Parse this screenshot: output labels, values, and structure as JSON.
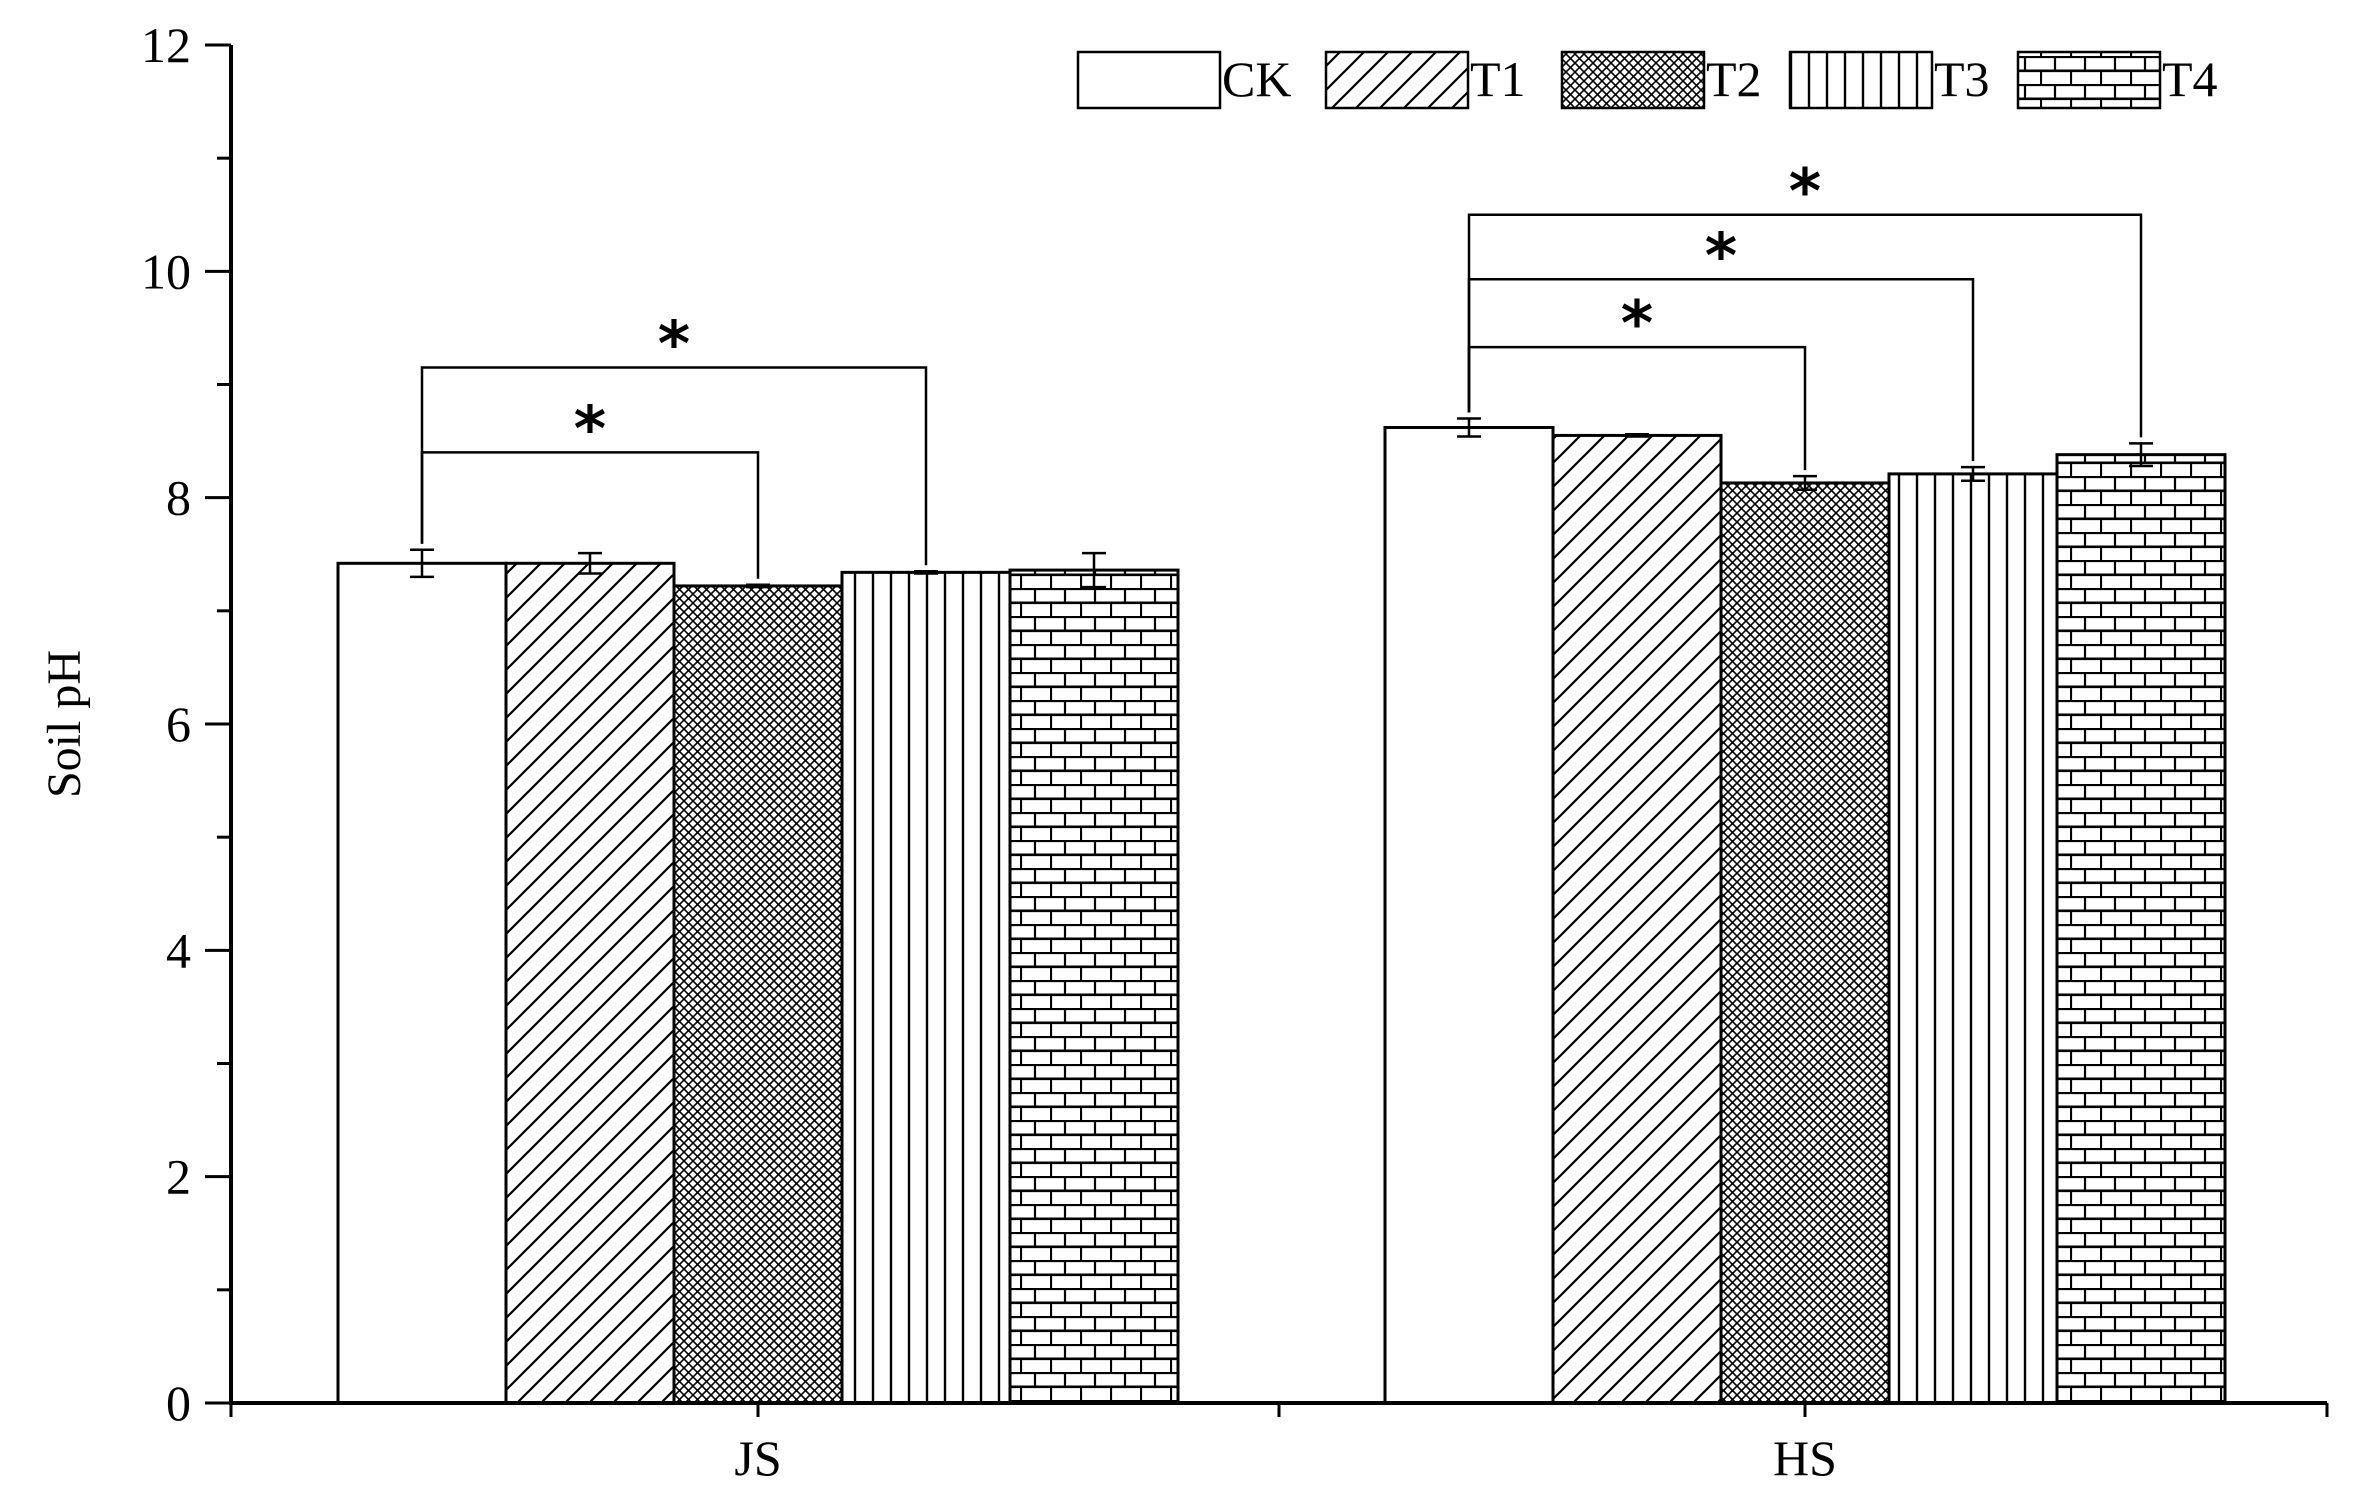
{
  "chart_data": {
    "type": "bar",
    "title": "",
    "xlabel": "",
    "ylabel": "Soil pH",
    "ylim": [
      0,
      12
    ],
    "yticks": [
      "0",
      "2",
      "4",
      "6",
      "8",
      "10",
      "12"
    ],
    "categories": [
      "JS",
      "HS"
    ],
    "legend_position": "top-right",
    "grid": false,
    "series": [
      {
        "name": "CK",
        "pattern": "none",
        "values": [
          7.42,
          8.62
        ],
        "errors": [
          0.12,
          0.08
        ]
      },
      {
        "name": "T1",
        "pattern": "diagonal",
        "values": [
          7.42,
          8.55
        ],
        "errors": [
          0.09,
          0.01
        ]
      },
      {
        "name": "T2",
        "pattern": "crosshatch",
        "values": [
          7.22,
          8.13
        ],
        "errors": [
          0.01,
          0.06
        ]
      },
      {
        "name": "T3",
        "pattern": "vertical",
        "values": [
          7.34,
          8.21
        ],
        "errors": [
          0.01,
          0.06
        ]
      },
      {
        "name": "T4",
        "pattern": "brick",
        "values": [
          7.36,
          8.38
        ],
        "errors": [
          0.15,
          0.1
        ]
      }
    ],
    "significance": [
      {
        "category": "JS",
        "from": "CK",
        "to": "T2",
        "label": "*"
      },
      {
        "category": "JS",
        "from": "CK",
        "to": "T3",
        "label": "*"
      },
      {
        "category": "HS",
        "from": "CK",
        "to": "T2",
        "label": "*"
      },
      {
        "category": "HS",
        "from": "CK",
        "to": "T3",
        "label": "*"
      },
      {
        "category": "HS",
        "from": "CK",
        "to": "T4",
        "label": "*"
      }
    ]
  }
}
